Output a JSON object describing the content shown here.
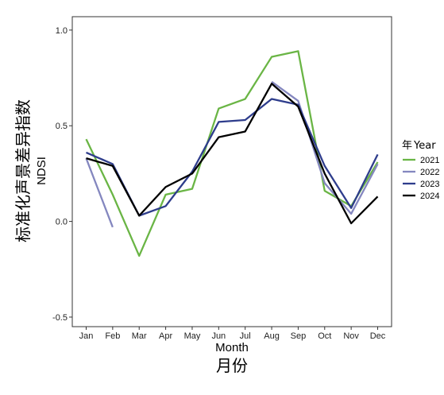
{
  "chart_data": {
    "type": "line",
    "categories": [
      "Jan",
      "Feb",
      "Mar",
      "Apr",
      "May",
      "Jun",
      "Jul",
      "Aug",
      "Sep",
      "Oct",
      "Nov",
      "Dec"
    ],
    "series": [
      {
        "name": "2021",
        "color": "#6ab545",
        "values": [
          0.43,
          0.14,
          -0.18,
          0.14,
          0.17,
          0.59,
          0.64,
          0.86,
          0.89,
          0.16,
          0.08,
          0.31
        ]
      },
      {
        "name": "2022",
        "color": "#8487bf",
        "values": [
          0.33,
          -0.03,
          null,
          null,
          null,
          null,
          null,
          0.73,
          0.63,
          0.2,
          0.04,
          0.3
        ]
      },
      {
        "name": "2023",
        "color": "#2e3d8c",
        "values": [
          0.36,
          0.3,
          0.03,
          0.08,
          0.26,
          0.52,
          0.53,
          0.64,
          0.61,
          0.29,
          0.07,
          0.35
        ]
      },
      {
        "name": "2024",
        "color": "#000000",
        "values": [
          0.33,
          0.29,
          0.03,
          0.18,
          0.25,
          0.44,
          0.47,
          0.72,
          0.6,
          0.25,
          -0.01,
          0.13
        ]
      }
    ],
    "xlabel": "Month",
    "xlabel_cn": "月份",
    "ylabel": "NDSI",
    "ylabel_cn": "标准化声景差异指数",
    "ylim": [
      -0.55,
      1.07
    ],
    "yticks": [
      -0.5,
      0.0,
      0.5,
      1.0
    ],
    "ytick_labels": [
      "-0.5",
      "0.0",
      "0.5",
      "1.0"
    ],
    "legend_title_cn": "年",
    "legend_title": "Year",
    "legend_position": "right",
    "grid": false
  }
}
